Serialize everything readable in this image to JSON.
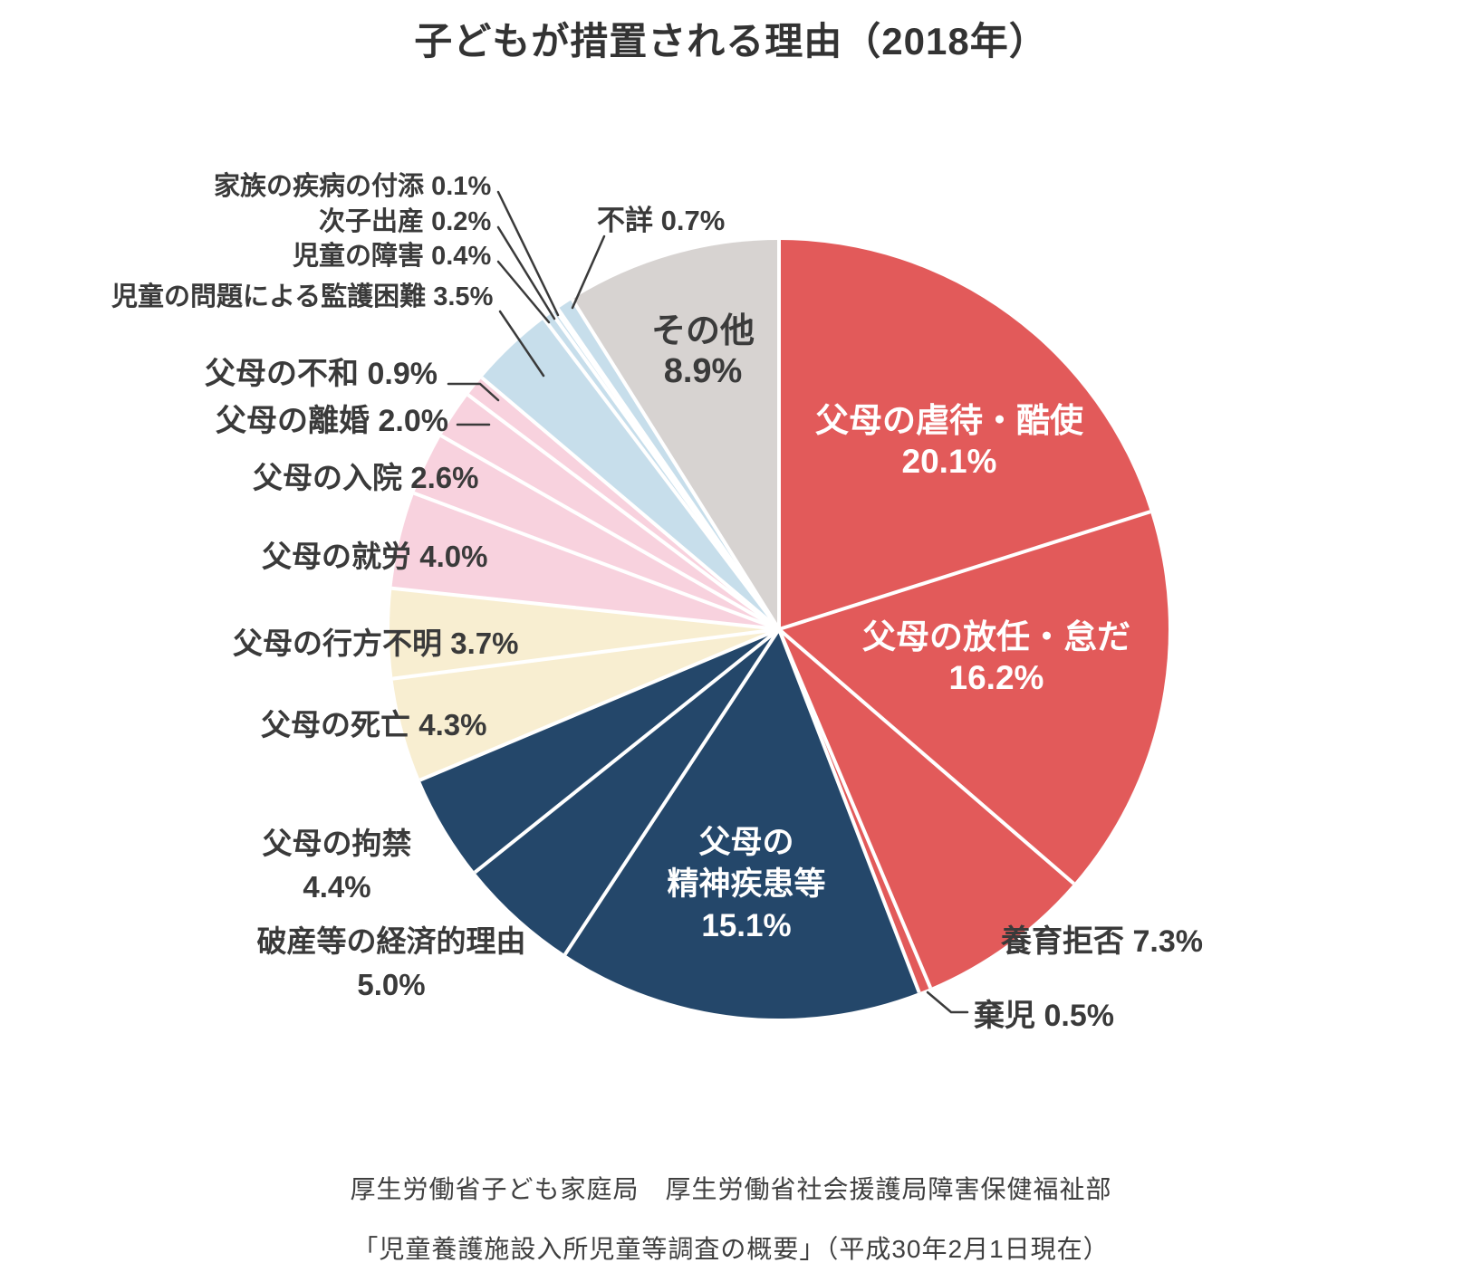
{
  "title": "子どもが措置される理由（2018年）",
  "chart_data": {
    "type": "pie",
    "unit": "%",
    "start_angle": "12-oclock",
    "direction": "clockwise",
    "slices": [
      {
        "label": "父母の虐待・酷使",
        "value": 20.1,
        "pct": "20.1%",
        "group": "red"
      },
      {
        "label": "父母の放任・怠だ",
        "value": 16.2,
        "pct": "16.2%",
        "group": "red"
      },
      {
        "label": "養育拒否",
        "value": 7.3,
        "pct": "7.3%",
        "group": "red"
      },
      {
        "label": "棄児",
        "value": 0.5,
        "pct": "0.5%",
        "group": "red"
      },
      {
        "label": "父母の精神疾患等",
        "value": 15.1,
        "pct": "15.1%",
        "group": "navy"
      },
      {
        "label": "破産等の経済的理由",
        "value": 5.0,
        "pct": "5.0%",
        "group": "navy"
      },
      {
        "label": "父母の拘禁",
        "value": 4.4,
        "pct": "4.4%",
        "group": "navy"
      },
      {
        "label": "父母の死亡",
        "value": 4.3,
        "pct": "4.3%",
        "group": "cream"
      },
      {
        "label": "父母の行方不明",
        "value": 3.7,
        "pct": "3.7%",
        "group": "cream"
      },
      {
        "label": "父母の就労",
        "value": 4.0,
        "pct": "4.0%",
        "group": "pink"
      },
      {
        "label": "父母の入院",
        "value": 2.6,
        "pct": "2.6%",
        "group": "pink"
      },
      {
        "label": "父母の離婚",
        "value": 2.0,
        "pct": "2.0%",
        "group": "pink"
      },
      {
        "label": "父母の不和",
        "value": 0.9,
        "pct": "0.9%",
        "group": "pink"
      },
      {
        "label": "児童の問題による監護困難",
        "value": 3.5,
        "pct": "3.5%",
        "group": "lightblue"
      },
      {
        "label": "児童の障害",
        "value": 0.4,
        "pct": "0.4%",
        "group": "lightblue"
      },
      {
        "label": "次子出産",
        "value": 0.2,
        "pct": "0.2%",
        "group": "lightblue"
      },
      {
        "label": "家族の疾病の付添",
        "value": 0.1,
        "pct": "0.1%",
        "group": "lightblue"
      },
      {
        "label": "不詳",
        "value": 0.7,
        "pct": "0.7%",
        "group": "lightblue"
      },
      {
        "label": "その他",
        "value": 8.9,
        "pct": "8.9%",
        "group": "gray"
      }
    ],
    "colors": {
      "red": "#E25A5A",
      "navy": "#24476A",
      "cream": "#F8EED1",
      "pink": "#F8D2DE",
      "lightblue": "#C7DEEB",
      "gray": "#D7D3D1"
    },
    "label_text_colors": {
      "inside_dark_slices": "#ffffff",
      "outside": "#3a3a3a"
    },
    "legend": "none"
  },
  "source": {
    "line1": "厚生労働省子ども家庭局　厚生労働省社会援護局障害保健福祉部",
    "line2": "「児童養護施設入所児童等調査の概要」（平成30年2月1日現在）"
  }
}
